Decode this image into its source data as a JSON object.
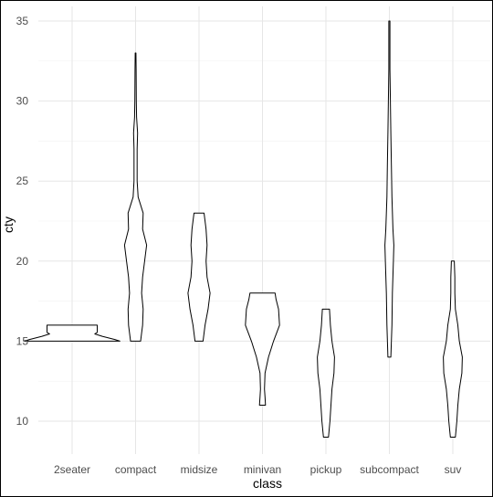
{
  "chart_data": {
    "type": "violin",
    "title": "",
    "xlabel": "class",
    "ylabel": "cty",
    "ylim": [
      8,
      35.6
    ],
    "yticks": [
      10,
      15,
      20,
      25,
      30,
      35
    ],
    "grid": true,
    "theme": "minimal",
    "categories": [
      "2seater",
      "compact",
      "midsize",
      "minivan",
      "pickup",
      "subcompact",
      "suv"
    ],
    "violins": [
      {
        "category": "2seater",
        "min": 15,
        "max": 16,
        "profile": [
          [
            15,
            0.95
          ],
          [
            15.1,
            0.85
          ],
          [
            15.3,
            0.6
          ],
          [
            15.45,
            0.45
          ],
          [
            15.55,
            0.5
          ],
          [
            15.75,
            0.5
          ],
          [
            15.9,
            0.5
          ],
          [
            16,
            0.5
          ]
        ]
      },
      {
        "category": "compact",
        "min": 15,
        "max": 33,
        "profile": [
          [
            15,
            0.1
          ],
          [
            15.5,
            0.12
          ],
          [
            16,
            0.14
          ],
          [
            17,
            0.15
          ],
          [
            18,
            0.12
          ],
          [
            19,
            0.14
          ],
          [
            20,
            0.18
          ],
          [
            21,
            0.22
          ],
          [
            22,
            0.14
          ],
          [
            23,
            0.15
          ],
          [
            24,
            0.05
          ],
          [
            25,
            0.03
          ],
          [
            26,
            0.03
          ],
          [
            27,
            0.03
          ],
          [
            28,
            0.04
          ],
          [
            29,
            0.02
          ],
          [
            30,
            0.015
          ],
          [
            32,
            0.01
          ],
          [
            33,
            0.005
          ]
        ]
      },
      {
        "category": "midsize",
        "min": 15,
        "max": 23,
        "profile": [
          [
            15,
            0.08
          ],
          [
            16,
            0.12
          ],
          [
            17,
            0.18
          ],
          [
            18,
            0.22
          ],
          [
            19,
            0.16
          ],
          [
            20,
            0.14
          ],
          [
            21,
            0.16
          ],
          [
            22,
            0.14
          ],
          [
            23,
            0.1
          ]
        ]
      },
      {
        "category": "minivan",
        "min": 11,
        "max": 18,
        "profile": [
          [
            11,
            0.06
          ],
          [
            11.5,
            0.05
          ],
          [
            12,
            0.04
          ],
          [
            13,
            0.05
          ],
          [
            14,
            0.12
          ],
          [
            15,
            0.22
          ],
          [
            16,
            0.34
          ],
          [
            17,
            0.32
          ],
          [
            17.6,
            0.27
          ],
          [
            18,
            0.25
          ]
        ]
      },
      {
        "category": "pickup",
        "min": 9,
        "max": 17,
        "profile": [
          [
            9,
            0.05
          ],
          [
            10,
            0.08
          ],
          [
            11,
            0.1
          ],
          [
            12,
            0.12
          ],
          [
            13,
            0.16
          ],
          [
            14,
            0.17
          ],
          [
            15,
            0.12
          ],
          [
            16,
            0.09
          ],
          [
            17,
            0.07
          ]
        ]
      },
      {
        "category": "subcompact",
        "min": 14,
        "max": 35,
        "profile": [
          [
            14,
            0.03
          ],
          [
            16,
            0.05
          ],
          [
            18,
            0.06
          ],
          [
            20,
            0.08
          ],
          [
            21,
            0.09
          ],
          [
            22,
            0.07
          ],
          [
            24,
            0.05
          ],
          [
            26,
            0.04
          ],
          [
            28,
            0.03
          ],
          [
            30,
            0.02
          ],
          [
            32,
            0.01
          ],
          [
            34,
            0.01
          ],
          [
            35,
            0.01
          ]
        ]
      },
      {
        "category": "suv",
        "min": 9,
        "max": 20,
        "profile": [
          [
            9,
            0.05
          ],
          [
            10,
            0.08
          ],
          [
            11,
            0.1
          ],
          [
            12,
            0.13
          ],
          [
            13,
            0.18
          ],
          [
            14,
            0.19
          ],
          [
            15,
            0.13
          ],
          [
            16,
            0.1
          ],
          [
            17,
            0.05
          ],
          [
            18,
            0.04
          ],
          [
            19,
            0.04
          ],
          [
            20,
            0.03
          ]
        ]
      }
    ]
  }
}
